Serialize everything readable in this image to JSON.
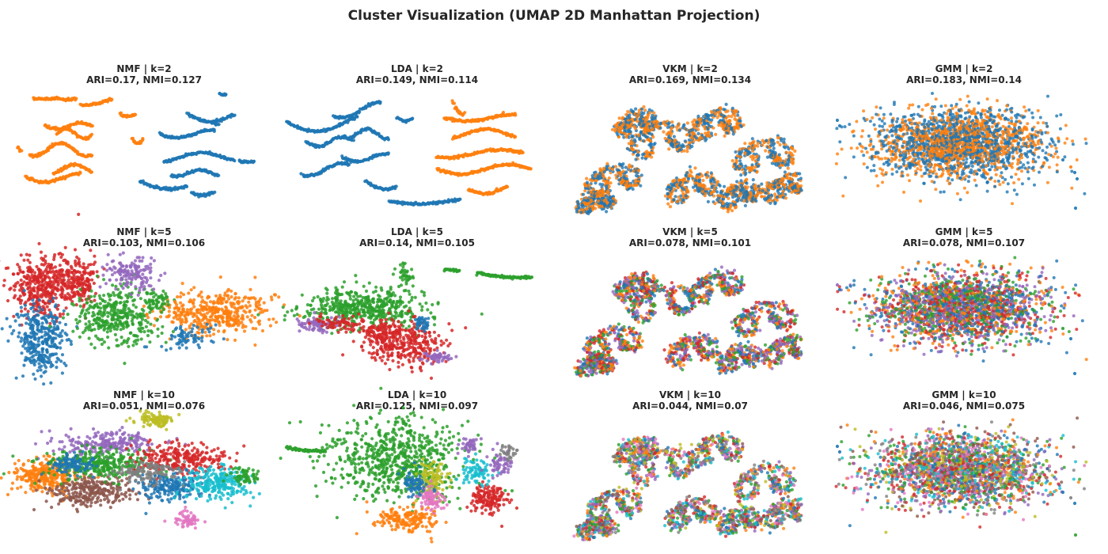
{
  "figure": {
    "title": "Cluster Visualization (UMAP 2D Manhattan Projection)"
  },
  "chart_data": [
    {
      "type": "scatter",
      "method": "NMF",
      "k": 2,
      "title": "NMF | k=2",
      "subtitle": "ARI=0.17, NMI=0.127",
      "ari": 0.17,
      "nmi": 0.127
    },
    {
      "type": "scatter",
      "method": "LDA",
      "k": 2,
      "title": "LDA | k=2",
      "subtitle": "ARI=0.149, NMI=0.114",
      "ari": 0.149,
      "nmi": 0.114
    },
    {
      "type": "scatter",
      "method": "VKM",
      "k": 2,
      "title": "VKM | k=2",
      "subtitle": "ARI=0.169, NMI=0.134",
      "ari": 0.169,
      "nmi": 0.134
    },
    {
      "type": "scatter",
      "method": "GMM",
      "k": 2,
      "title": "GMM | k=2",
      "subtitle": "ARI=0.183, NMI=0.14",
      "ari": 0.183,
      "nmi": 0.14
    },
    {
      "type": "scatter",
      "method": "NMF",
      "k": 5,
      "title": "NMF | k=5",
      "subtitle": "ARI=0.103, NMI=0.106",
      "ari": 0.103,
      "nmi": 0.106
    },
    {
      "type": "scatter",
      "method": "LDA",
      "k": 5,
      "title": "LDA | k=5",
      "subtitle": "ARI=0.14, NMI=0.105",
      "ari": 0.14,
      "nmi": 0.105
    },
    {
      "type": "scatter",
      "method": "VKM",
      "k": 5,
      "title": "VKM | k=5",
      "subtitle": "ARI=0.078, NMI=0.101",
      "ari": 0.078,
      "nmi": 0.101
    },
    {
      "type": "scatter",
      "method": "GMM",
      "k": 5,
      "title": "GMM | k=5",
      "subtitle": "ARI=0.078, NMI=0.107",
      "ari": 0.078,
      "nmi": 0.107
    },
    {
      "type": "scatter",
      "method": "NMF",
      "k": 10,
      "title": "NMF | k=10",
      "subtitle": "ARI=0.051, NMI=0.076",
      "ari": 0.051,
      "nmi": 0.076
    },
    {
      "type": "scatter",
      "method": "LDA",
      "k": 10,
      "title": "LDA | k=10",
      "subtitle": "ARI=0.125, NMI=0.097",
      "ari": 0.125,
      "nmi": 0.097
    },
    {
      "type": "scatter",
      "method": "VKM",
      "k": 10,
      "title": "VKM | k=10",
      "subtitle": "ARI=0.044, NMI=0.07",
      "ari": 0.044,
      "nmi": 0.07
    },
    {
      "type": "scatter",
      "method": "GMM",
      "k": 10,
      "title": "GMM | k=10",
      "subtitle": "ARI=0.046, NMI=0.075",
      "ari": 0.046,
      "nmi": 0.075
    }
  ],
  "palette": [
    "#1f77b4",
    "#ff7f0e",
    "#2ca02c",
    "#d62728",
    "#9467bd",
    "#8c564b",
    "#e377c2",
    "#7f7f7f",
    "#bcbd22",
    "#17becf"
  ],
  "axes_visible": false,
  "grid": false,
  "legend": "none"
}
